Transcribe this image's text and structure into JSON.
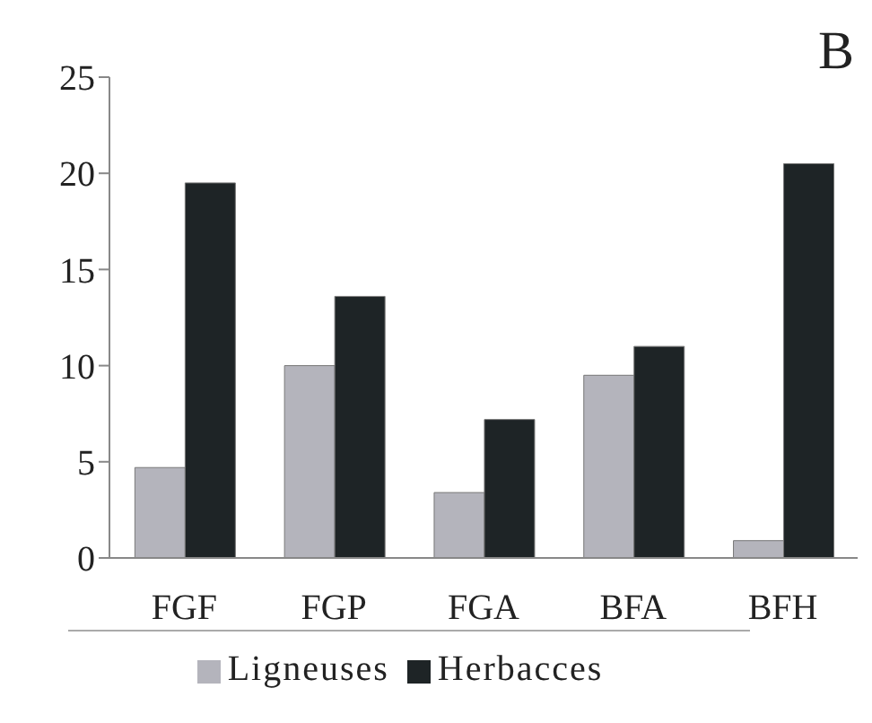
{
  "chart_data": {
    "type": "bar",
    "title": "B",
    "categories": [
      "FGF",
      "FGP",
      "FGA",
      "BFA",
      "BFH"
    ],
    "series": [
      {
        "name": "Ligneuses",
        "color": "#b4b4bc",
        "values": [
          4.7,
          10,
          3.4,
          9.5,
          0.9
        ]
      },
      {
        "name": "Herbacces",
        "color": "#1e2426",
        "values": [
          19.5,
          13.6,
          7.2,
          11,
          20.5
        ]
      }
    ],
    "ylim": [
      0,
      25
    ],
    "yticks": [
      0,
      5,
      10,
      15,
      20,
      25
    ],
    "grid": false,
    "legend": "bottom"
  }
}
